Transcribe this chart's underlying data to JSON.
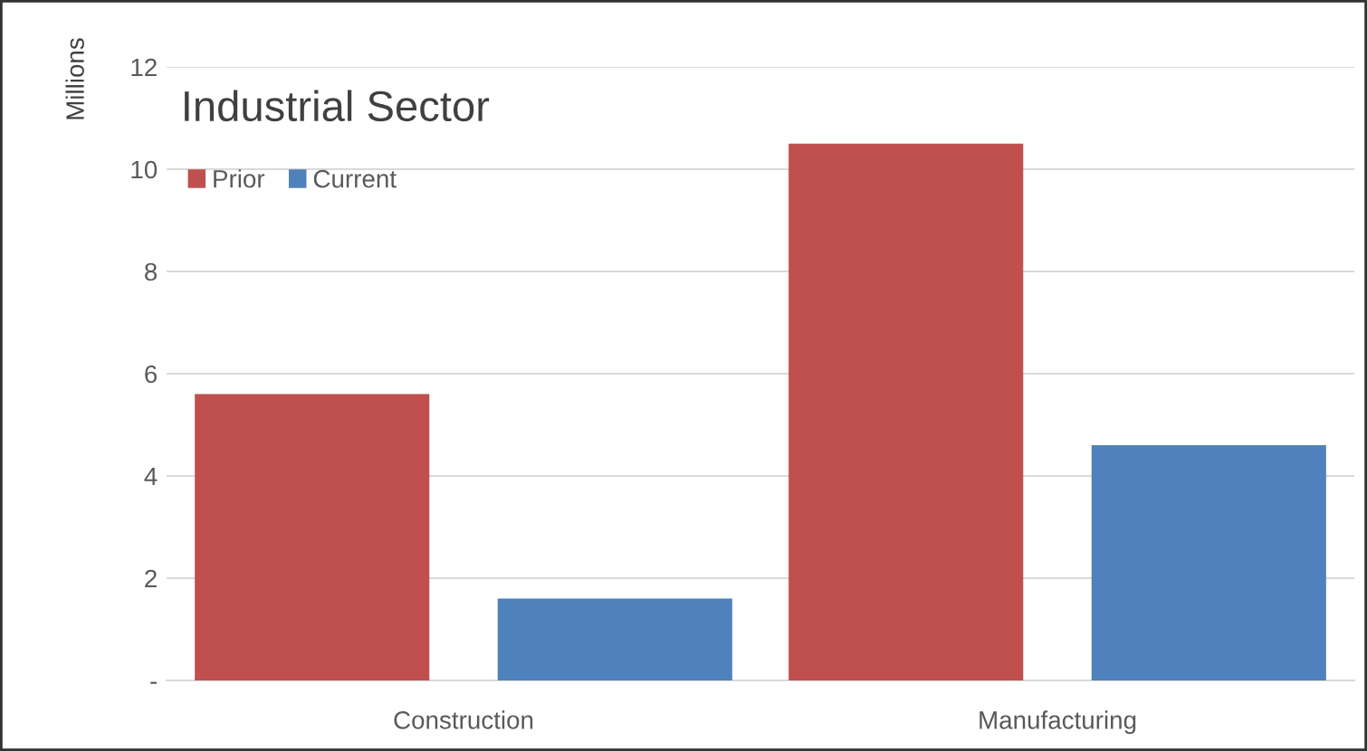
{
  "chart_data": {
    "type": "bar",
    "title": "Industrial Sector",
    "ylabel": "Millions",
    "categories": [
      "Construction",
      "Manufacturing"
    ],
    "series": [
      {
        "name": "Prior",
        "color": "#c0504d",
        "values": [
          5.6,
          10.5
        ]
      },
      {
        "name": "Current",
        "color": "#4f81bd",
        "values": [
          1.6,
          4.6
        ]
      }
    ],
    "ylim": [
      0,
      12
    ],
    "yticks": [
      {
        "value": 0,
        "label": "-"
      },
      2,
      4,
      6,
      8,
      10,
      12
    ],
    "grid": "y",
    "legend": "top left"
  }
}
